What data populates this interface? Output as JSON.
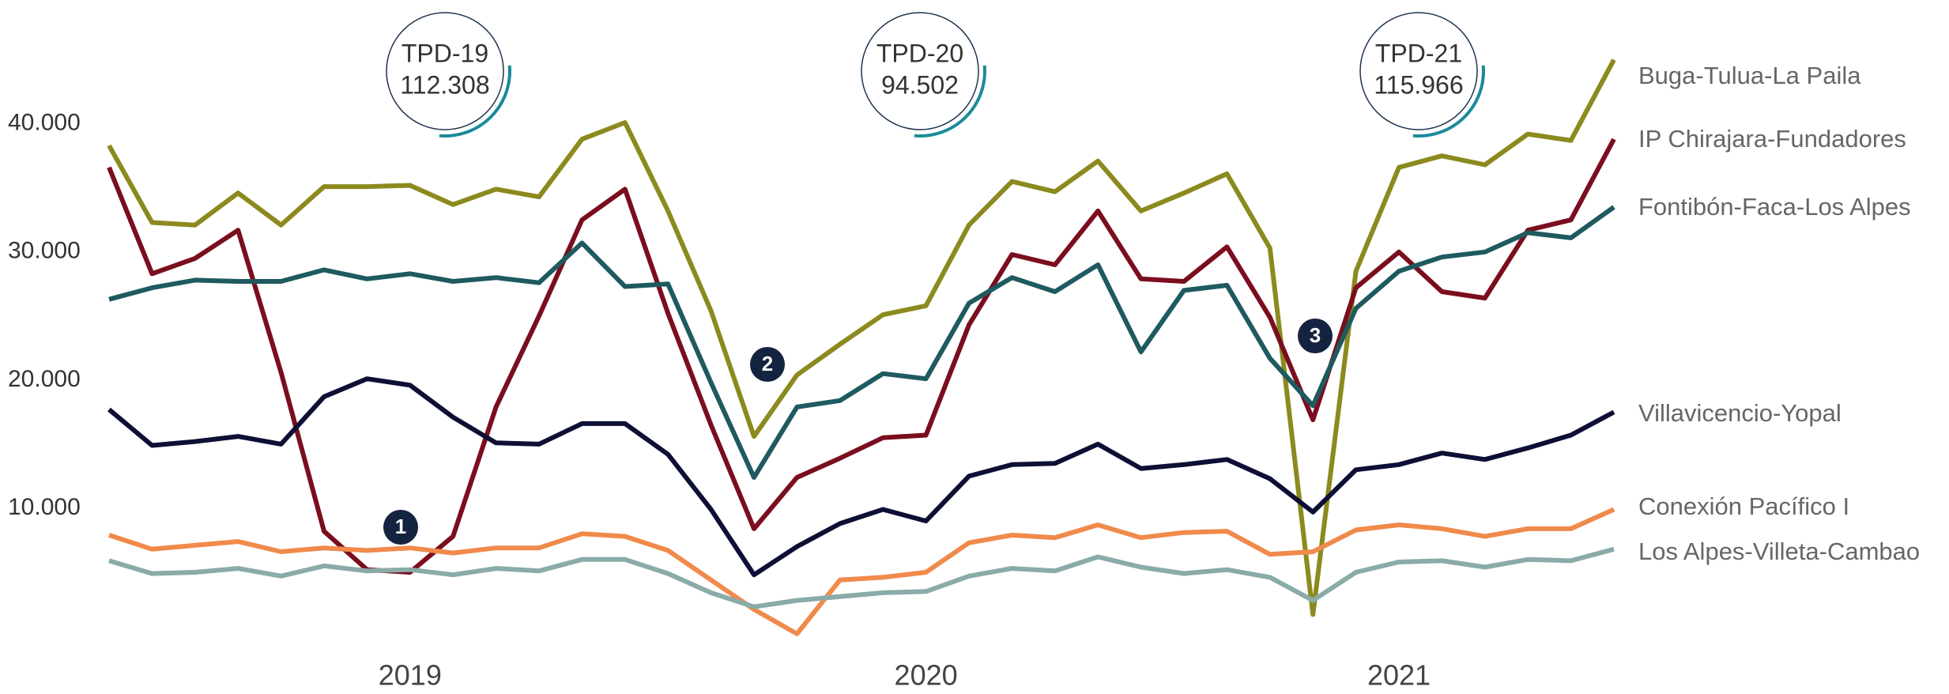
{
  "chart_data": {
    "type": "line",
    "categories": [
      null,
      null,
      null,
      null,
      null,
      null,
      null,
      "2019",
      null,
      null,
      null,
      null,
      null,
      null,
      null,
      null,
      null,
      null,
      null,
      "2020",
      null,
      null,
      null,
      null,
      null,
      null,
      null,
      null,
      null,
      null,
      "2021",
      null,
      null,
      null,
      null,
      null
    ],
    "series": [
      {
        "name": "Buga-Tulua-La Paila",
        "color": "#8c8a1e",
        "values": [
          38300,
          32300,
          32100,
          34600,
          32100,
          35100,
          35100,
          35200,
          33700,
          34900,
          34300,
          38800,
          40100,
          33200,
          25400,
          15600,
          20400,
          22800,
          25100,
          25800,
          32100,
          35500,
          34700,
          37100,
          33200,
          34600,
          36100,
          30300,
          1700,
          28500,
          36600,
          37500,
          36800,
          39200,
          38700,
          45000
        ]
      },
      {
        "name": "IP Chirajara-Fundadores",
        "color": "#7a0e1e",
        "values": [
          36600,
          28300,
          29500,
          31700,
          20600,
          8200,
          5200,
          5000,
          7800,
          17900,
          25000,
          32500,
          34900,
          25200,
          16500,
          8400,
          12400,
          13900,
          15500,
          15700,
          24300,
          29800,
          29000,
          33200,
          27900,
          27700,
          30400,
          24900,
          16900,
          27200,
          30000,
          26900,
          26400,
          31700,
          32500,
          38800
        ]
      },
      {
        "name": "Fontibón-Faca-Los Alpes",
        "color": "#1e5a5f",
        "values": [
          26300,
          27200,
          27800,
          27700,
          27700,
          28600,
          27900,
          28300,
          27700,
          28000,
          27600,
          30700,
          27300,
          27500,
          19800,
          12400,
          17900,
          18400,
          20500,
          20100,
          26000,
          28000,
          26900,
          29000,
          22200,
          27000,
          27400,
          21700,
          18000,
          25600,
          28500,
          29600,
          30000,
          31500,
          31100,
          33500
        ]
      },
      {
        "name": "Villavicencio-Yopal",
        "color": "#0e0f35",
        "values": [
          17700,
          14900,
          15200,
          15600,
          15000,
          18700,
          20100,
          19600,
          17100,
          15100,
          15000,
          16600,
          16600,
          14200,
          9900,
          4800,
          7000,
          8800,
          9900,
          9000,
          12500,
          13400,
          13500,
          15000,
          13100,
          13400,
          13800,
          12300,
          9700,
          13000,
          13400,
          14300,
          13800,
          14700,
          15700,
          17500
        ]
      },
      {
        "name": "Conexión Pacífico I",
        "color": "#f08a4b",
        "values": [
          7900,
          6800,
          7100,
          7400,
          6600,
          6900,
          6700,
          6900,
          6500,
          6900,
          6900,
          8000,
          7800,
          6700,
          4400,
          2100,
          200,
          4400,
          4600,
          5000,
          7300,
          7900,
          7700,
          8700,
          7700,
          8100,
          8200,
          6400,
          6600,
          8300,
          8700,
          8400,
          7800,
          8400,
          8400,
          9900
        ]
      },
      {
        "name": "Los Alpes-Villeta-Cambao",
        "color": "#8aaba8",
        "values": [
          5900,
          4900,
          5000,
          5300,
          4700,
          5500,
          5100,
          5200,
          4800,
          5300,
          5100,
          6000,
          6000,
          4900,
          3400,
          2300,
          2800,
          3100,
          3400,
          3500,
          4700,
          5300,
          5100,
          6200,
          5400,
          4900,
          5200,
          4600,
          2800,
          5000,
          5800,
          5900,
          5400,
          6000,
          5900,
          6800
        ]
      }
    ],
    "ylim": [
      0,
      48000
    ],
    "yticks": [
      {
        "value": 10000,
        "label": "10.000"
      },
      {
        "value": 20000,
        "label": "20.000"
      },
      {
        "value": 30000,
        "label": "30.000"
      },
      {
        "value": 40000,
        "label": "40.000"
      }
    ],
    "grid": false,
    "annotations": [
      {
        "label": "TPD-19",
        "value": "112.308"
      },
      {
        "label": "TPD-20",
        "value": "94.502"
      },
      {
        "label": "TPD-21",
        "value": "115.966"
      }
    ],
    "markers": [
      "1",
      "2",
      "3"
    ]
  }
}
